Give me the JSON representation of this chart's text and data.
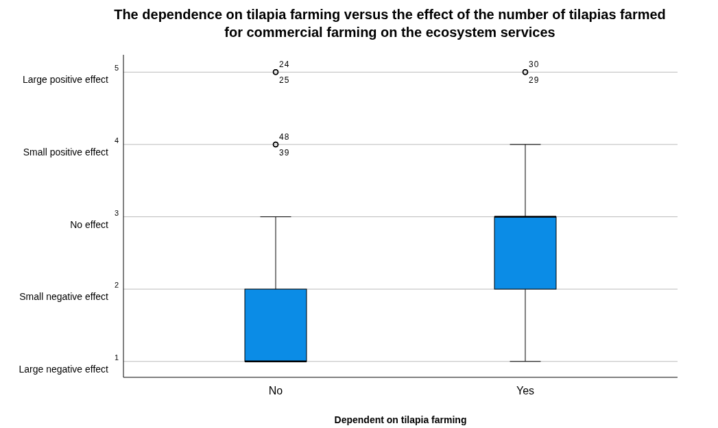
{
  "chart_data": {
    "type": "box",
    "title": "The dependence on tilapia farming versus the effect of the number of tilapias farmed for commercial farming on the ecosystem services",
    "xlabel": "Dependent on tilapia farming",
    "categories": [
      "No",
      "Yes"
    ],
    "series": [
      {
        "color": "#0b8ce6",
        "boxes": [
          {
            "low": 1,
            "q1": 1,
            "median": 1,
            "q3": 2,
            "high": 3,
            "outliers": [
              5,
              5,
              4,
              4
            ]
          },
          {
            "low": 1,
            "q1": 2,
            "median": 3,
            "q3": 3,
            "high": 4,
            "outliers": [
              5,
              5
            ]
          }
        ]
      }
    ],
    "ylim": [
      0.78,
      5.24
    ],
    "yticks": [
      1,
      2,
      3,
      4,
      5
    ],
    "grid": "y",
    "annotations": [
      "24",
      "25",
      "48",
      "39",
      "30",
      "29",
      "Large positive effect",
      "Small positive effect",
      "No effect",
      "Small negative effect",
      "Large negative effect"
    ]
  }
}
